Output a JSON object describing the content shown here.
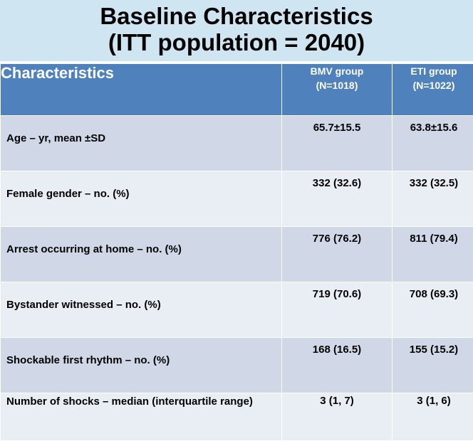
{
  "title": {
    "line1": "Baseline Characteristics",
    "line2": "(ITT population = 2040)"
  },
  "table": {
    "header": {
      "characteristics": "Characteristics",
      "bmv_line1": "BMV group",
      "bmv_line2": "(N=1018)",
      "eti_line1": "ETI group",
      "eti_line2": "(N=1022)"
    },
    "rows": [
      {
        "label": "Age – yr, mean ±SD",
        "bmv": "65.7±15.5",
        "eti": "63.8±15.6"
      },
      {
        "label": "Female gender – no. (%)",
        "bmv": "332 (32.6)",
        "eti": "332 (32.5)"
      },
      {
        "label": "Arrest occurring at home – no. (%)",
        "bmv": "776 (76.2)",
        "eti": "811 (79.4)"
      },
      {
        "label": "Bystander witnessed – no. (%)",
        "bmv": "719 (70.6)",
        "eti": "708 (69.3)"
      },
      {
        "label": "Shockable first rhythm – no. (%)",
        "bmv": "168 (16.5)",
        "eti": "155 (15.2)"
      },
      {
        "label": "Number of shocks – median (interquartile range)",
        "bmv": "3 (1, 7)",
        "eti": "3 (1, 6)"
      }
    ]
  },
  "colors": {
    "title_band": "#cfe6f2",
    "header_fill": "#4f81bd",
    "row_fill_dark": "#d0d8e8",
    "row_fill_light": "#e9edf4"
  }
}
